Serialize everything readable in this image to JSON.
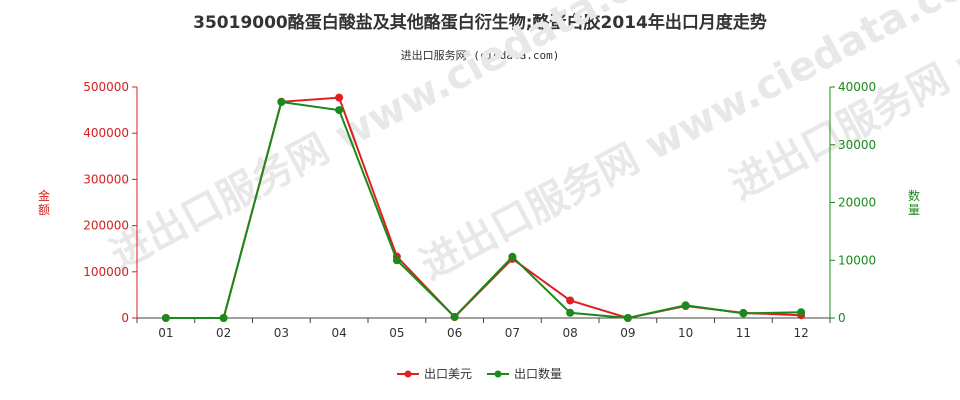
{
  "chart_data": {
    "type": "line",
    "title": "35019000酪蛋白酸盐及其他酪蛋白衍生物;酪蛋白胶2014年出口月度走势",
    "subtitle": "进出口服务网 (ciedata.com)",
    "watermark": "进出口服务网 www.ciedata.com",
    "categories": [
      "01",
      "02",
      "03",
      "04",
      "05",
      "06",
      "07",
      "08",
      "09",
      "10",
      "11",
      "12"
    ],
    "y_left": {
      "label": "金额",
      "ylim": [
        0,
        500000
      ],
      "ticks": [
        "0",
        "100000",
        "200000",
        "300000",
        "400000",
        "500000"
      ],
      "color": "#d32020"
    },
    "y_right": {
      "label": "数量",
      "ylim": [
        0,
        40000
      ],
      "ticks": [
        "0",
        "10000",
        "20000",
        "30000",
        "40000"
      ],
      "color": "#1a8a1a"
    },
    "series": [
      {
        "name": "出口美元",
        "axis": "left",
        "color": "#e02020",
        "values": [
          0,
          0,
          468000,
          477000,
          133000,
          2000,
          128000,
          38000,
          0,
          26000,
          11000,
          6000
        ]
      },
      {
        "name": "出口数量",
        "axis": "right",
        "color": "#1a8a1a",
        "values": [
          0,
          0,
          37400,
          36000,
          10000,
          200,
          10600,
          900,
          0,
          2200,
          800,
          1000
        ]
      }
    ],
    "legend_position": "bottom-center",
    "grid": false
  }
}
